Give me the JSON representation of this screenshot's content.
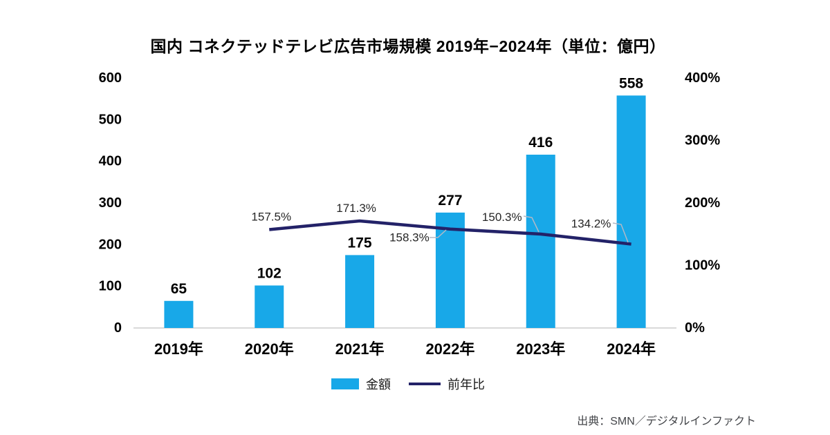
{
  "title": "国内 コネクテッドテレビ広告市場規模 2019年−2024年（単位：億円）",
  "source": "出典：SMN／デジタルインファクト",
  "legend": {
    "bars": "金額",
    "line": "前年比"
  },
  "colors": {
    "bar": "#18a8e8",
    "line": "#232268",
    "axis_line": "#d9d9d9",
    "leader": "#b3b9c6",
    "tick_text": "#000000",
    "pct_text": "#262626",
    "source_text": "#44464a"
  },
  "chart_data": {
    "type": "bar+line",
    "title": "国内 コネクテッドテレビ広告市場規模 2019年−2024年（単位：億円）",
    "categories": [
      "2019年",
      "2020年",
      "2021年",
      "2022年",
      "2023年",
      "2024年"
    ],
    "series": [
      {
        "name": "金額",
        "type": "bar",
        "axis": "left",
        "values": [
          65,
          102,
          175,
          277,
          416,
          558
        ],
        "labels": [
          "65",
          "102",
          "175",
          "277",
          "416",
          "558"
        ]
      },
      {
        "name": "前年比",
        "type": "line",
        "axis": "right",
        "values": [
          null,
          157.5,
          171.3,
          158.3,
          150.3,
          134.2
        ],
        "labels": [
          "",
          "157.5%",
          "171.3%",
          "158.3%",
          "150.3%",
          "134.2%"
        ]
      }
    ],
    "left_axis": {
      "min": 0,
      "max": 600,
      "step": 100,
      "ticks": [
        "0",
        "100",
        "200",
        "300",
        "400",
        "500",
        "600"
      ]
    },
    "right_axis": {
      "min": 0,
      "max": 400,
      "step": 100,
      "ticks": [
        "0%",
        "100%",
        "200%",
        "300%",
        "400%"
      ]
    },
    "grid": false,
    "legend_position": "bottom"
  }
}
